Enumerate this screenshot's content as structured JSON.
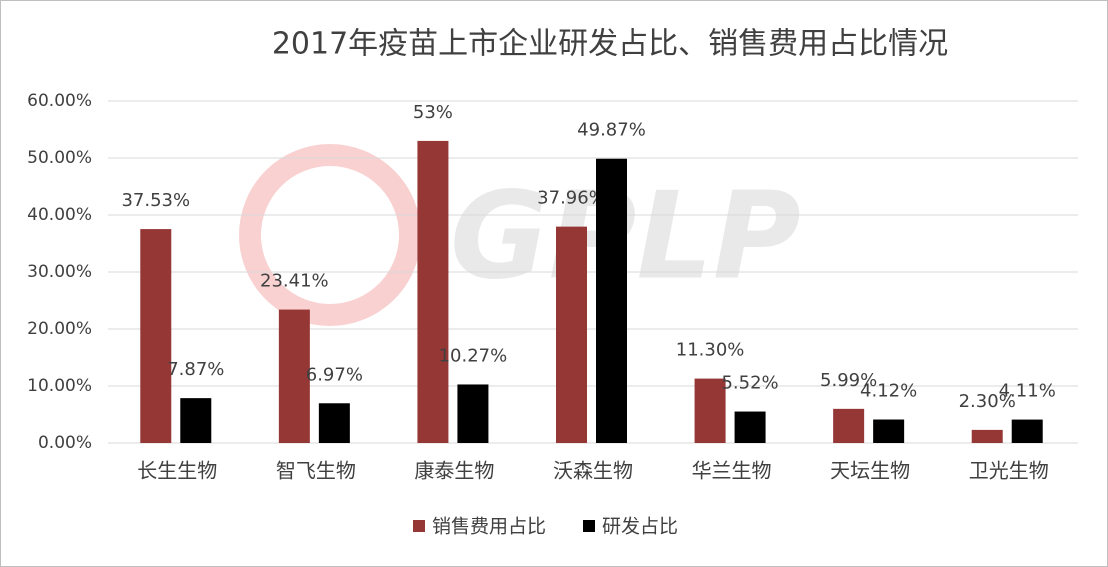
{
  "chart_data": {
    "type": "bar",
    "title": "2017年疫苗上市企业研发占比、销售费用占比情况",
    "watermark": "GPLP",
    "categories": [
      "长生生物",
      "智飞生物",
      "康泰生物",
      "沃森生物",
      "华兰生物",
      "天坛生物",
      "卫光生物"
    ],
    "series": [
      {
        "name": "销售费用占比",
        "color": "#953735",
        "values": [
          37.53,
          23.41,
          53,
          37.96,
          11.3,
          5.99,
          2.3
        ],
        "value_labels": [
          "37.53%",
          "23.41%",
          "53%",
          "37.96%",
          "11.30%",
          "5.99%",
          "2.30%"
        ]
      },
      {
        "name": "研发占比",
        "color": "#000000",
        "values": [
          7.87,
          6.97,
          10.27,
          49.87,
          5.52,
          4.12,
          4.11
        ],
        "value_labels": [
          "7.87%",
          "6.97%",
          "10.27%",
          "49.87%",
          "5.52%",
          "4.12%",
          "4.11%"
        ]
      }
    ],
    "ylim": [
      0,
      60
    ],
    "yticks": [
      {
        "value": 0,
        "label": "0.00%"
      },
      {
        "value": 10,
        "label": "10.00%"
      },
      {
        "value": 20,
        "label": "20.00%"
      },
      {
        "value": 30,
        "label": "30.00%"
      },
      {
        "value": 40,
        "label": "40.00%"
      },
      {
        "value": 50,
        "label": "50.00%"
      },
      {
        "value": 60,
        "label": "60.00%"
      }
    ],
    "grid": true,
    "legend": "bottom"
  }
}
